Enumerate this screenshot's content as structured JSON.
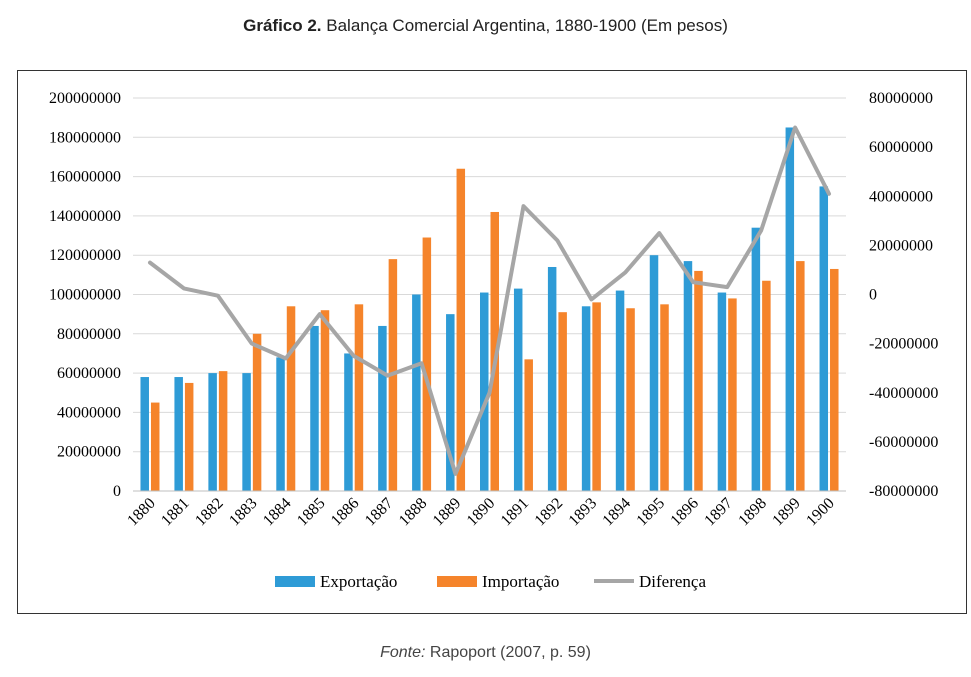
{
  "title": {
    "bold": "Gráfico 2.",
    "rest": " Balança Comercial Argentina, 1880-1900 (Em pesos)"
  },
  "source": {
    "label": "Fonte:",
    "text": " Rapoport (2007, p. 59)"
  },
  "chart_data": {
    "type": "bar+line",
    "categories": [
      "1880",
      "1881",
      "1882",
      "1883",
      "1884",
      "1885",
      "1886",
      "1887",
      "1888",
      "1889",
      "1890",
      "1891",
      "1892",
      "1893",
      "1894",
      "1895",
      "1896",
      "1897",
      "1898",
      "1899",
      "1900"
    ],
    "series": [
      {
        "name": "Exportação",
        "axis": "left",
        "kind": "bar",
        "color": "#2e9bd6",
        "values": [
          58000000,
          58000000,
          60000000,
          60000000,
          68000000,
          84000000,
          70000000,
          84000000,
          100000000,
          90000000,
          101000000,
          103000000,
          114000000,
          94000000,
          102000000,
          120000000,
          117000000,
          101000000,
          134000000,
          185000000,
          155000000
        ]
      },
      {
        "name": "Importação",
        "axis": "left",
        "kind": "bar",
        "color": "#f5842b",
        "values": [
          45000000,
          55000000,
          61000000,
          80000000,
          94000000,
          92000000,
          95000000,
          118000000,
          129000000,
          164000000,
          142000000,
          67000000,
          91000000,
          96000000,
          93000000,
          95000000,
          112000000,
          98000000,
          107000000,
          117000000,
          113000000
        ]
      },
      {
        "name": "Diferença",
        "axis": "right",
        "kind": "line",
        "color": "#a6a6a6",
        "values": [
          13000000,
          2500000,
          -500000,
          -20000000,
          -26000000,
          -8000000,
          -25000000,
          -33000000,
          -28000000,
          -73000000,
          -40000000,
          36000000,
          22000000,
          -2000000,
          9000000,
          25000000,
          5000000,
          3000000,
          26000000,
          68000000,
          41000000
        ]
      }
    ],
    "y_left": {
      "min": 0,
      "max": 200000000,
      "ticks": [
        "200000000",
        "180000000",
        "160000000",
        "140000000",
        "120000000",
        "100000000",
        "80000000",
        "60000000",
        "40000000",
        "20000000",
        "0"
      ]
    },
    "y_right": {
      "min": -80000000,
      "max": 80000000,
      "ticks": [
        "80000000",
        "60000000",
        "40000000",
        "20000000",
        "0",
        "-20000000",
        "-40000000",
        "-60000000",
        "-80000000"
      ]
    },
    "legend": [
      "Exportação",
      "Importação",
      "Diferença"
    ],
    "legend_position": "bottom",
    "grid": true
  }
}
